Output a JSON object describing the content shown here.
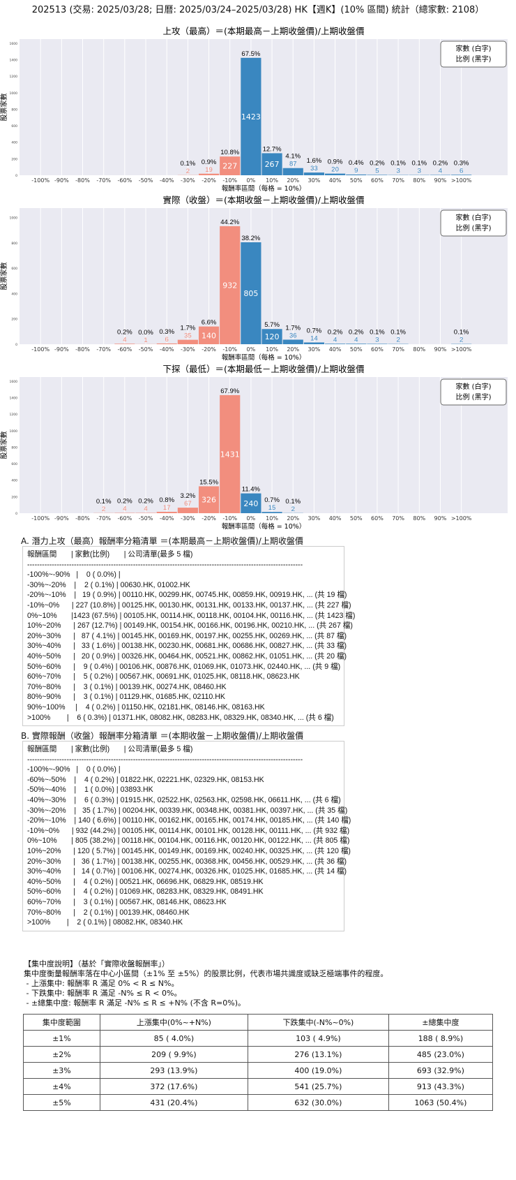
{
  "main_title": "202513 (交易: 2025/03/28; 日曆: 2025/03/24–2025/03/28) HK【週K】(10% 區間) 統計（總家數: 2108）",
  "colors": {
    "negative": "#f28e7e",
    "positive": "#3a87c0",
    "plot_bg": "#eaeaf2",
    "grid": "#ffffff"
  },
  "chart_data": [
    {
      "type": "bar",
      "title": "上攻（最高）＝(本期最高－上期收盤價)/上期收盤價",
      "xlabel": "報酬率區間（每格 = 10%）",
      "ylabel": "股票家數",
      "legend": [
        "家數 (白字)",
        "比例 (黑字)"
      ],
      "legend_placement": "top-right",
      "categories": [
        "-100%",
        "-90%",
        "-80%",
        "-70%",
        "-60%",
        "-50%",
        "-40%",
        "-30%",
        "-20%",
        "-10%",
        "0%",
        "10%",
        "20%",
        "30%",
        "40%",
        "50%",
        "60%",
        "70%",
        "80%",
        "90%",
        ">100%"
      ],
      "values": [
        0,
        0,
        0,
        0,
        0,
        0,
        0,
        2,
        19,
        227,
        1423,
        267,
        87,
        33,
        20,
        9,
        5,
        3,
        3,
        4,
        6
      ],
      "percent_labels": [
        "",
        "",
        "",
        "",
        "",
        "",
        "",
        "0.1%",
        "0.9%",
        "10.8%",
        "67.5%",
        "12.7%",
        "4.1%",
        "1.6%",
        "0.9%",
        "0.4%",
        "0.2%",
        "0.1%",
        "0.1%",
        "0.2%",
        "0.3%"
      ],
      "ylim": [
        0,
        1650
      ],
      "yticks": [
        "0",
        "200",
        "400",
        "600",
        "800",
        "1000",
        "1200",
        "1400",
        "1600"
      ],
      "grid": true
    },
    {
      "type": "bar",
      "title": "實際（收盤）＝(本期收盤－上期收盤價)/上期收盤價",
      "xlabel": "報酬率區間（每格 = 10%）",
      "ylabel": "股票家數",
      "legend": [
        "家數 (白字)",
        "比例 (黑字)"
      ],
      "legend_placement": "top-right",
      "categories": [
        "-100%",
        "-90%",
        "-80%",
        "-70%",
        "-60%",
        "-50%",
        "-40%",
        "-30%",
        "-20%",
        "-10%",
        "0%",
        "10%",
        "20%",
        "30%",
        "40%",
        "50%",
        "60%",
        "70%",
        "80%",
        "90%",
        ">100%"
      ],
      "values": [
        0,
        0,
        0,
        0,
        4,
        1,
        6,
        35,
        140,
        932,
        805,
        120,
        36,
        14,
        4,
        4,
        3,
        2,
        0,
        0,
        2
      ],
      "percent_labels": [
        "",
        "",
        "",
        "",
        "0.2%",
        "0.0%",
        "0.3%",
        "1.7%",
        "6.6%",
        "44.2%",
        "38.2%",
        "5.7%",
        "1.7%",
        "0.7%",
        "0.2%",
        "0.2%",
        "0.1%",
        "0.1%",
        "",
        "",
        "0.1%"
      ],
      "ylim": [
        0,
        1075
      ],
      "yticks": [
        "0",
        "200",
        "400",
        "600",
        "800",
        "1000"
      ],
      "grid": true
    },
    {
      "type": "bar",
      "title": "下探（最低）＝(本期最低－上期收盤價)/上期收盤價",
      "xlabel": "報酬率區間（每格 = 10%）",
      "ylabel": "股票家數",
      "legend": [
        "家數 (白字)",
        "比例 (黑字)"
      ],
      "legend_placement": "top-right",
      "categories": [
        "-100%",
        "-90%",
        "-80%",
        "-70%",
        "-60%",
        "-50%",
        "-40%",
        "-30%",
        "-20%",
        "-10%",
        "0%",
        "10%",
        "20%",
        "30%",
        "40%",
        "50%",
        "60%",
        "70%",
        "80%",
        "90%",
        ">100%"
      ],
      "values": [
        0,
        0,
        0,
        2,
        4,
        4,
        17,
        67,
        326,
        1431,
        240,
        15,
        2,
        0,
        0,
        0,
        0,
        0,
        0,
        0,
        0
      ],
      "percent_labels": [
        "",
        "",
        "",
        "0.1%",
        "0.2%",
        "0.2%",
        "0.8%",
        "3.2%",
        "15.5%",
        "67.9%",
        "11.4%",
        "0.7%",
        "0.1%",
        "",
        "",
        "",
        "",
        "",
        "",
        "",
        ""
      ],
      "ylim": [
        0,
        1650
      ],
      "yticks": [
        "0",
        "200",
        "400",
        "600",
        "800",
        "1000",
        "1200",
        "1400",
        "1600"
      ],
      "grid": true
    }
  ],
  "section_a": {
    "title": "A. 潛力上攻（最高）報酬率分箱清單 ＝(本期最高－上期收盤價)/上期收盤價",
    "lines": [
      "報酬區間       | 家數(比例)       | 公司清單(最多 5 檔)",
      "----------------------------------------------------------------------------------------------------------------",
      "-100%~-90%   |    0 ( 0.0%) |",
      "-30%~-20%    |    2 ( 0.1%) | 00630.HK, 01002.HK",
      "-20%~-10%    |   19 ( 0.9%) | 00110.HK, 00299.HK, 00745.HK, 00859.HK, 00919.HK, ... (共 19 檔)",
      "-10%~0%      | 227 (10.8%) | 00125.HK, 00130.HK, 00131.HK, 00133.HK, 00137.HK, ... (共 227 檔)",
      "0%~10%       |1423 (67.5%) | 00105.HK, 00114.HK, 00118.HK, 00104.HK, 00116.HK, ... (共 1423 檔)",
      "10%~20%      | 267 (12.7%) | 00149.HK, 00154.HK, 00166.HK, 00196.HK, 00210.HK, ... (共 267 檔)",
      "20%~30%      |   87 ( 4.1%) | 00145.HK, 00169.HK, 00197.HK, 00255.HK, 00269.HK, ... (共 87 檔)",
      "30%~40%      |   33 ( 1.6%) | 00138.HK, 00230.HK, 00681.HK, 00686.HK, 00827.HK, ... (共 33 檔)",
      "40%~50%      |   20 ( 0.9%) | 00326.HK, 00464.HK, 00521.HK, 00862.HK, 01051.HK, ... (共 20 檔)",
      "50%~60%      |    9 ( 0.4%) | 00106.HK, 00876.HK, 01069.HK, 01073.HK, 02440.HK, ... (共 9 檔)",
      "60%~70%      |    5 ( 0.2%) | 00567.HK, 00691.HK, 01025.HK, 08118.HK, 08623.HK",
      "70%~80%      |    3 ( 0.1%) | 00139.HK, 00274.HK, 08460.HK",
      "80%~90%      |    3 ( 0.1%) | 01129.HK, 01685.HK, 02110.HK",
      "90%~100%     |    4 ( 0.2%) | 01150.HK, 02181.HK, 08146.HK, 08163.HK",
      ">100%        |    6 ( 0.3%) | 01371.HK, 08082.HK, 08283.HK, 08329.HK, 08340.HK, ... (共 6 檔)"
    ]
  },
  "section_b": {
    "title": "B. 實際報酬（收盤）報酬率分箱清單 ＝(本期收盤－上期收盤價)/上期收盤價",
    "lines": [
      "報酬區間       | 家數(比例)       | 公司清單(最多 5 檔)",
      "----------------------------------------------------------------------------------------------------------------",
      "-100%~-90%   |    0 ( 0.0%) |",
      "-60%~-50%    |    4 ( 0.2%) | 01822.HK, 02221.HK, 02329.HK, 08153.HK",
      "-50%~-40%    |    1 ( 0.0%) | 03893.HK",
      "-40%~-30%    |    6 ( 0.3%) | 01915.HK, 02522.HK, 02563.HK, 02598.HK, 06611.HK, ... (共 6 檔)",
      "-30%~-20%    |   35 ( 1.7%) | 00204.HK, 00339.HK, 00348.HK, 00381.HK, 00397.HK, ... (共 35 檔)",
      "-20%~-10%    | 140 ( 6.6%) | 00110.HK, 00162.HK, 00165.HK, 00174.HK, 00185.HK, ... (共 140 檔)",
      "-10%~0%      | 932 (44.2%) | 00105.HK, 00114.HK, 00101.HK, 00128.HK, 00111.HK, ... (共 932 檔)",
      "0%~10%       | 805 (38.2%) | 00118.HK, 00104.HK, 00116.HK, 00120.HK, 00122.HK, ... (共 805 檔)",
      "10%~20%      | 120 ( 5.7%) | 00145.HK, 00149.HK, 00169.HK, 00240.HK, 00325.HK, ... (共 120 檔)",
      "20%~30%      |   36 ( 1.7%) | 00138.HK, 00255.HK, 00368.HK, 00456.HK, 00529.HK, ... (共 36 檔)",
      "30%~40%      |   14 ( 0.7%) | 00106.HK, 00274.HK, 00326.HK, 01025.HK, 01685.HK, ... (共 14 檔)",
      "40%~50%      |    4 ( 0.2%) | 00521.HK, 06696.HK, 06829.HK, 08519.HK",
      "50%~60%      |    4 ( 0.2%) | 01069.HK, 08283.HK, 08329.HK, 08491.HK",
      "60%~70%      |    3 ( 0.1%) | 00567.HK, 08146.HK, 08623.HK",
      "70%~80%      |    2 ( 0.1%) | 00139.HK, 08460.HK",
      ">100%        |    2 ( 0.1%) | 08082.HK, 08340.HK"
    ]
  },
  "explanation": {
    "lines": [
      "【集中度說明】（基於「實際收盤報酬率」）",
      "集中度衡量報酬率落在中心小區間（±1% 至 ±5%）的股票比例，代表市場共識度或缺乏極端事件的程度。",
      " - 上漲集中: 報酬率 R 滿足 0% < R ≤ N%。",
      " - 下跌集中: 報酬率 R 滿足 -N% ≤ R < 0%。",
      " - ±總集中度: 報酬率 R 滿足 -N% ≤ R ≤ +N% (不含 R=0%)。"
    ]
  },
  "concentration_table": {
    "headers": [
      "集中度範圍",
      "上漲集中(0%~+N%)",
      "下跌集中(-N%~0%)",
      "±總集中度"
    ],
    "rows": [
      [
        "±1%",
        "85 ( 4.0%)",
        "103 ( 4.9%)",
        "188 ( 8.9%)"
      ],
      [
        "±2%",
        "209 ( 9.9%)",
        "276 (13.1%)",
        "485 (23.0%)"
      ],
      [
        "±3%",
        "293 (13.9%)",
        "400 (19.0%)",
        "693 (32.9%)"
      ],
      [
        "±4%",
        "372 (17.6%)",
        "541 (25.7%)",
        "913 (43.3%)"
      ],
      [
        "±5%",
        "431 (20.4%)",
        "632 (30.0%)",
        "1063 (50.4%)"
      ]
    ]
  }
}
